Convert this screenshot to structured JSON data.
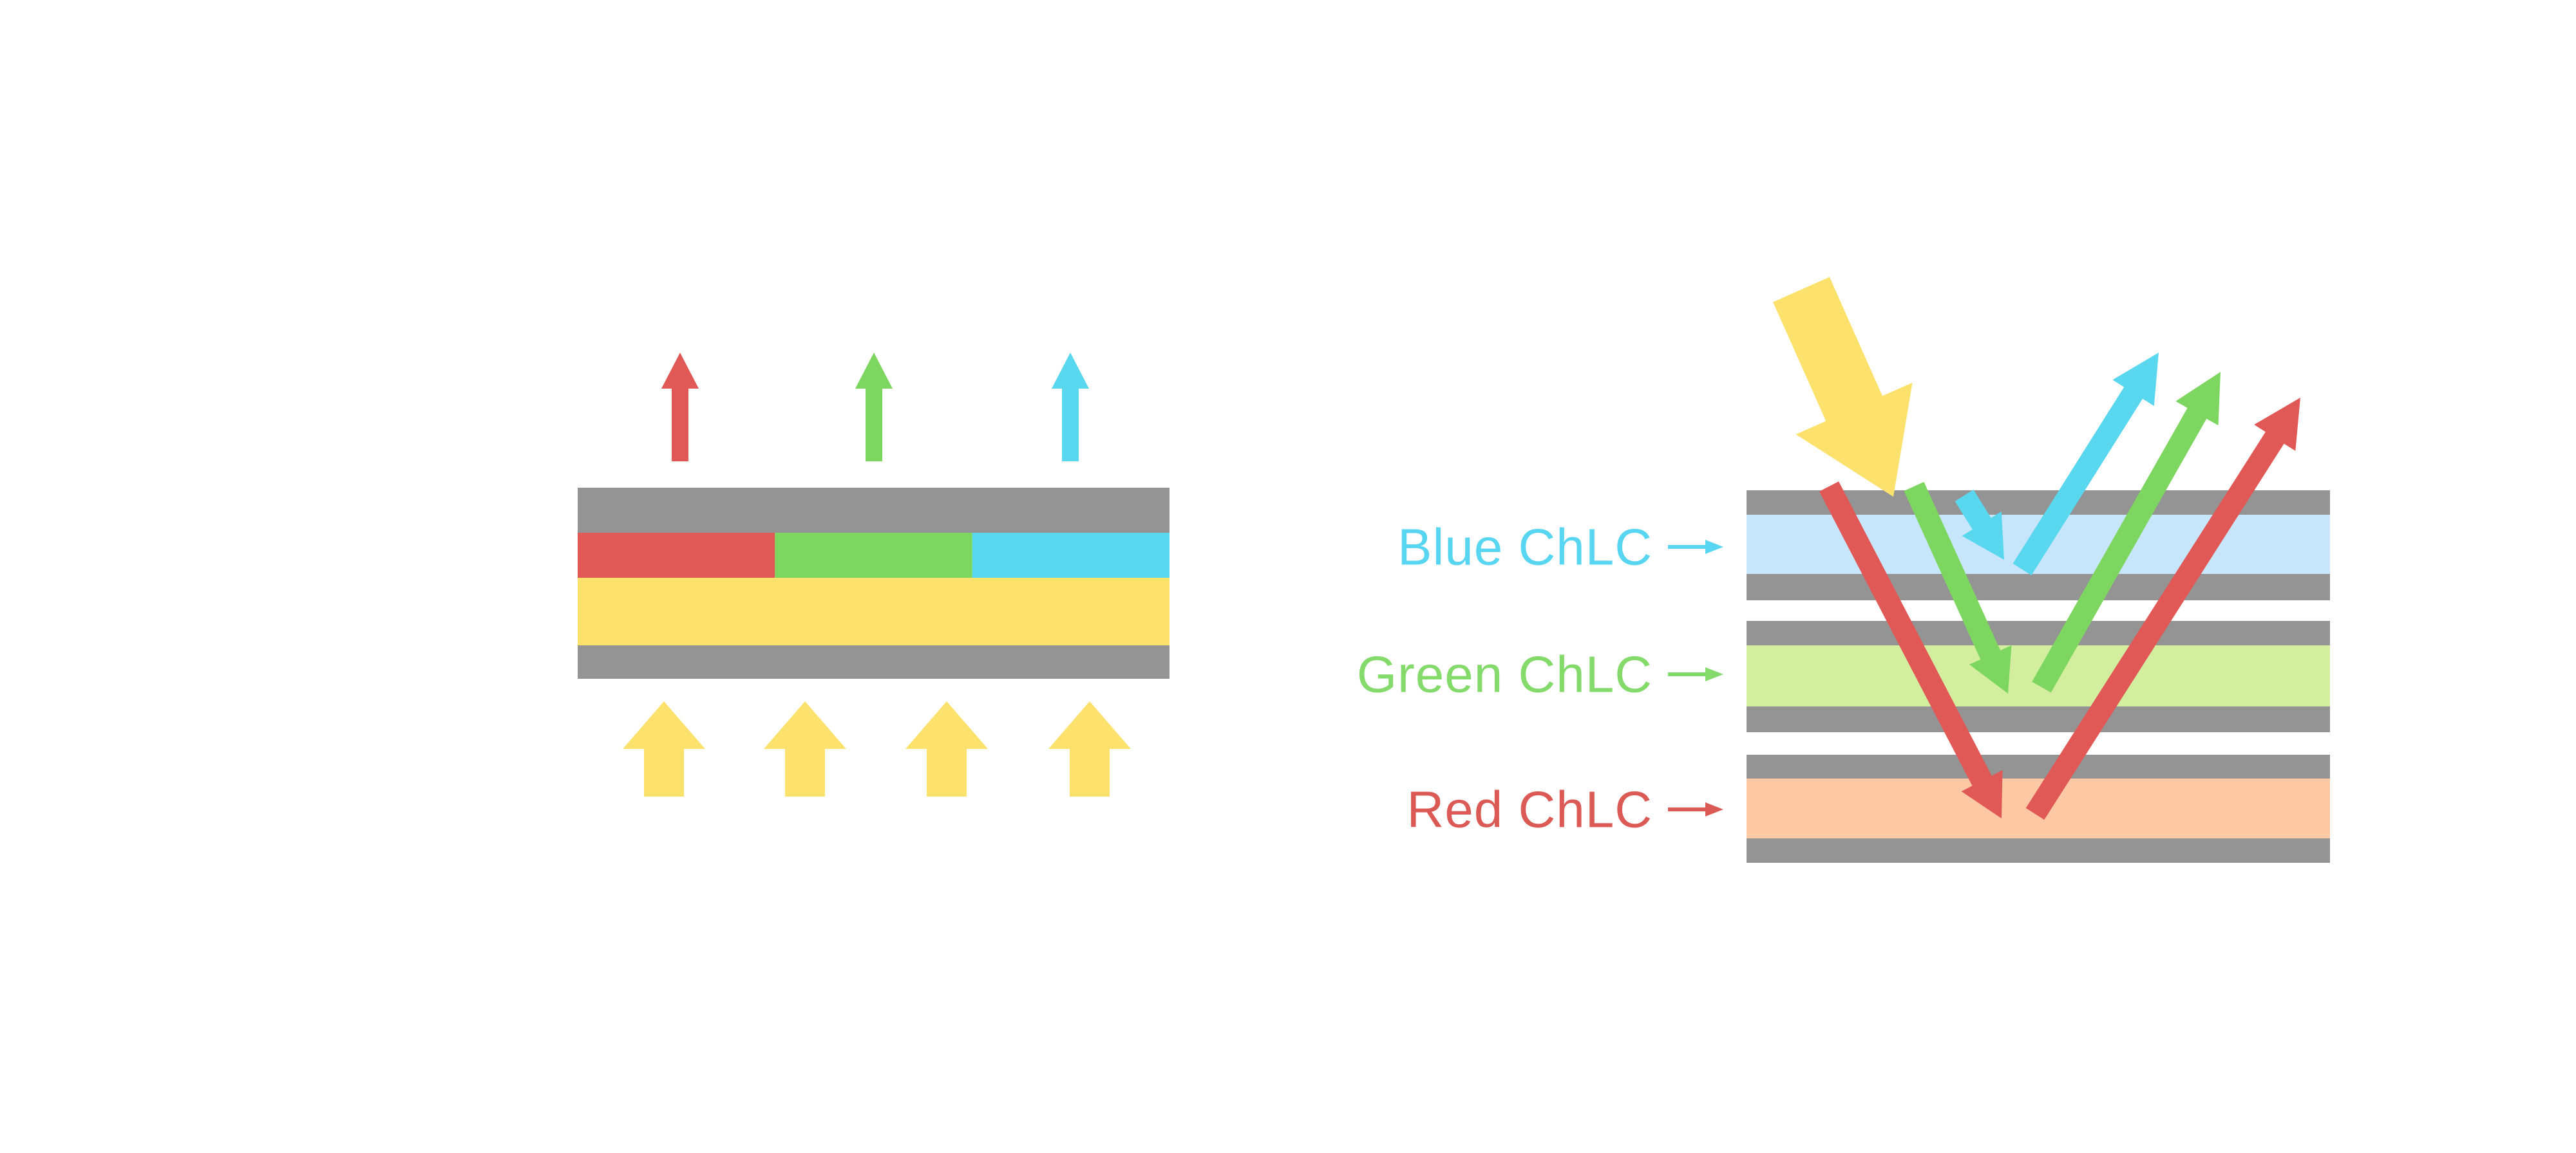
{
  "background": "#FFFFFF",
  "palette": {
    "red": "#E05956",
    "green": "#7CD65F",
    "cyan": "#59D7EF",
    "yellow": "#FCE26D",
    "gray": "#949494",
    "light_blue": "#C7E6FC",
    "light_green": "#D4EE9F",
    "light_orange": "#FDC9A5",
    "label_blue": "#58D5F0",
    "label_green": "#84DB6B",
    "label_red": "#DC5A55"
  },
  "left_diagram": {
    "description": "Backlit display stack: gray substrates, red/green/cyan subpixel filter row, yellow backlight layer; white light arrows enter from below, colored light exits above",
    "emitted_arrow_colors": [
      "red",
      "green",
      "cyan"
    ],
    "subpixel_colors": [
      "red",
      "green",
      "cyan"
    ],
    "backlight_layer_color": "yellow",
    "substrate_color": "gray",
    "backlight_arrow_color": "yellow",
    "backlight_arrow_count": 4
  },
  "right_diagram": {
    "description": "Cholesteric liquid crystal reflective stack: incident yellow/white light reflects blue, green and red at successive ChLC layers",
    "labels": [
      {
        "text": "Blue ChLC",
        "color_key": "label_blue"
      },
      {
        "text": "Green ChLC",
        "color_key": "label_green"
      },
      {
        "text": "Red ChLC",
        "color_key": "label_red"
      }
    ],
    "stack_layer_colors": [
      "gray",
      "light_blue",
      "gray",
      "gray",
      "light_green",
      "gray",
      "gray",
      "light_orange",
      "gray"
    ],
    "incident_arrow_color": "yellow",
    "refracted_arrow_colors": [
      "red",
      "green",
      "cyan"
    ],
    "reflected_arrow_colors": [
      "cyan",
      "green",
      "red"
    ]
  }
}
